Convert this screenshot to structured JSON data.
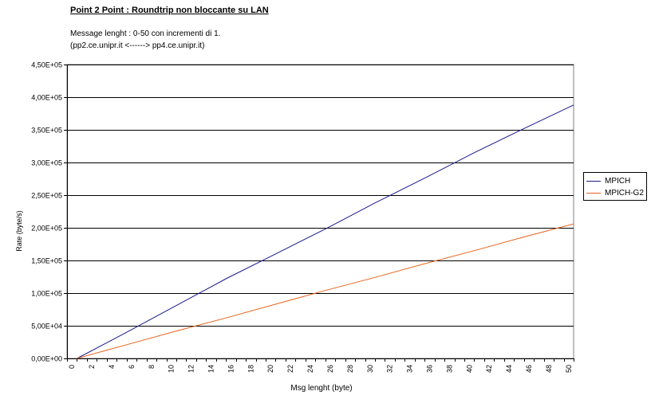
{
  "chart_data": {
    "type": "line",
    "title": "Point 2 Point  :  Roundtrip non bloccante su LAN",
    "subtitle_lines": [
      "Message lenght :  0-50 con incrementi di 1.",
      "(pp2.ce.unipr.it    <------>  pp4.ce.unipr.it)"
    ],
    "xlabel": "Msg lenght (byte)",
    "ylabel": "Rate (byte/s)",
    "xlim": [
      0,
      51
    ],
    "ylim": [
      0,
      450000
    ],
    "x_ticks": [
      0,
      2,
      4,
      6,
      8,
      10,
      12,
      14,
      16,
      18,
      20,
      22,
      24,
      26,
      28,
      30,
      32,
      34,
      36,
      38,
      40,
      42,
      44,
      46,
      48,
      50
    ],
    "y_tick_labels": [
      "0,00E+00",
      "5,00E+04",
      "1,00E+05",
      "1,50E+05",
      "2,00E+05",
      "2,50E+05",
      "3,00E+05",
      "3,50E+05",
      "4,00E+05",
      "4,50E+05"
    ],
    "y_ticks": [
      0,
      50000,
      100000,
      150000,
      200000,
      250000,
      300000,
      350000,
      400000,
      450000
    ],
    "grid": "horizontal",
    "legend_position": "right",
    "series": [
      {
        "name": "MPICH",
        "color": "#1a1a8c",
        "x": [
          0,
          5,
          10,
          15,
          20,
          25,
          30,
          35,
          40,
          45,
          50
        ],
        "values": [
          0,
          40000,
          81000,
          122000,
          160000,
          198000,
          238000,
          276000,
          315000,
          352000,
          388000
        ]
      },
      {
        "name": "MPICH-G2",
        "color": "#e6641e",
        "x": [
          0,
          5,
          10,
          15,
          20,
          25,
          30,
          35,
          40,
          45,
          50
        ],
        "values": [
          0,
          21000,
          42000,
          62000,
          83000,
          104000,
          124000,
          145000,
          165000,
          186000,
          206000
        ]
      }
    ]
  }
}
